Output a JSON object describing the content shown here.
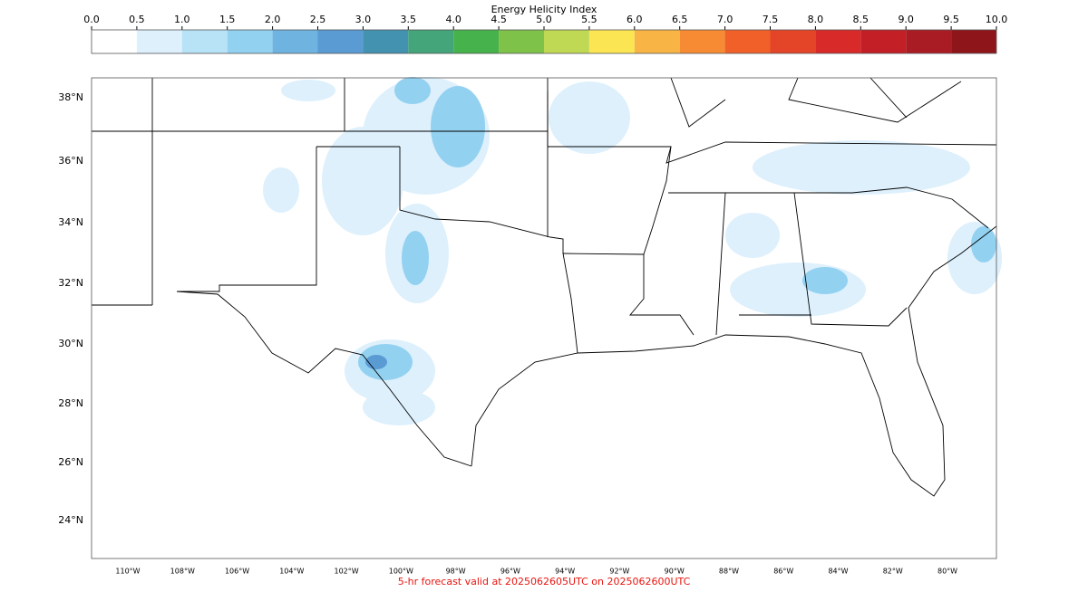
{
  "colorbar": {
    "title": "Energy Helicity Index",
    "lim": [
      0,
      10
    ],
    "ticks": [
      {
        "value": 0,
        "label": "0.0"
      },
      {
        "value": 0.5,
        "label": "0.5"
      },
      {
        "value": 1,
        "label": "1.0"
      },
      {
        "value": 1.5,
        "label": "1.5"
      },
      {
        "value": 2,
        "label": "2.0"
      },
      {
        "value": 2.5,
        "label": "2.5"
      },
      {
        "value": 3,
        "label": "3.0"
      },
      {
        "value": 3.5,
        "label": "3.5"
      },
      {
        "value": 4,
        "label": "4.0"
      },
      {
        "value": 4.5,
        "label": "4.5"
      },
      {
        "value": 5,
        "label": "5.0"
      },
      {
        "value": 5.5,
        "label": "5.5"
      },
      {
        "value": 6,
        "label": "6.0"
      },
      {
        "value": 6.5,
        "label": "6.5"
      },
      {
        "value": 7,
        "label": "7.0"
      },
      {
        "value": 7.5,
        "label": "7.5"
      },
      {
        "value": 8,
        "label": "8.0"
      },
      {
        "value": 8.5,
        "label": "8.5"
      },
      {
        "value": 9,
        "label": "9.0"
      },
      {
        "value": 9.5,
        "label": "9.5"
      },
      {
        "value": 10,
        "label": "10.0"
      }
    ],
    "colors": [
      "#ffffff",
      "#ddf0fc",
      "#b8e2f6",
      "#93d1f1",
      "#6fb3e0",
      "#5a9bd4",
      "#4392b0",
      "#44a47a",
      "#45b24b",
      "#7fc24a",
      "#c0d955",
      "#fbe553",
      "#f8b545",
      "#f68b33",
      "#f06028",
      "#e44528",
      "#d92a2a",
      "#c21f26",
      "#a91c23",
      "#8e1519"
    ]
  },
  "map": {
    "lat_labels": [
      "38°N",
      "36°N",
      "34°N",
      "32°N",
      "30°N",
      "28°N",
      "26°N",
      "24°N"
    ],
    "lon_labels": [
      "110°W",
      "108°W",
      "106°W",
      "104°W",
      "102°W",
      "100°W",
      "98°W",
      "96°W",
      "94°W",
      "92°W",
      "90°W",
      "88°W",
      "86°W",
      "84°W",
      "82°W",
      "80°W"
    ]
  },
  "footer": "5-hr forecast valid at 2025062605UTC on 2025062600UTC"
}
